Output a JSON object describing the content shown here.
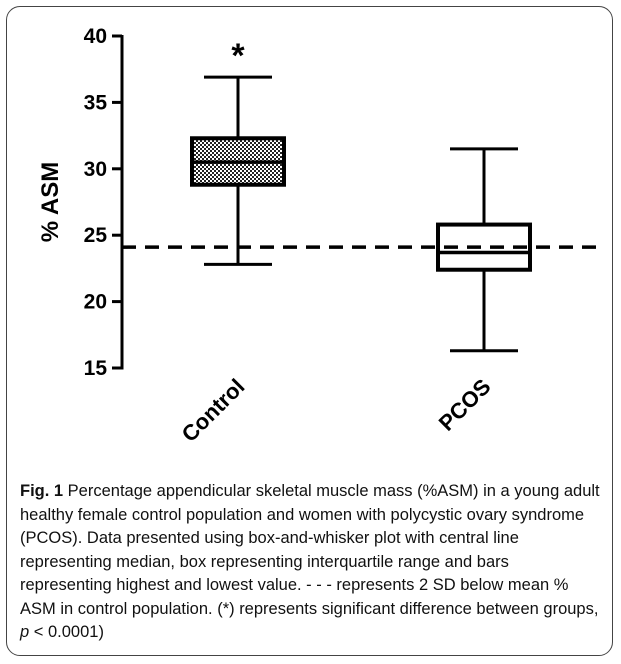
{
  "chart_data": {
    "type": "box",
    "ylabel": "% ASM",
    "ylim": [
      15,
      40
    ],
    "yticks": [
      15,
      20,
      25,
      30,
      35,
      40
    ],
    "categories": [
      "Control",
      "PCOS"
    ],
    "boxes": [
      {
        "category": "Control",
        "min": 22.8,
        "q1": 28.8,
        "median": 30.5,
        "q3": 32.3,
        "max": 36.9,
        "pattern": "checkered",
        "annotation": "*"
      },
      {
        "category": "PCOS",
        "min": 16.3,
        "q1": 22.4,
        "median": 23.7,
        "q3": 25.8,
        "max": 31.5,
        "pattern": "none",
        "annotation": ""
      }
    ],
    "reference_line": {
      "value": 24.1,
      "style": "dashed"
    },
    "grid": false
  },
  "caption": {
    "label": "Fig. 1",
    "text_before_p": " Percentage appendicular skeletal muscle mass (%ASM) in a young adult healthy female control population and women with polycystic ovary syndrome (PCOS). Data presented using box-and-whisker plot with central line representing median, box representing interquartile range and bars representing highest and lowest value. - - - represents 2 SD below mean % ASM in control population. (*) represents significant difference between groups, ",
    "p_symbol": "p",
    "text_after_p": " < 0.0001)"
  }
}
